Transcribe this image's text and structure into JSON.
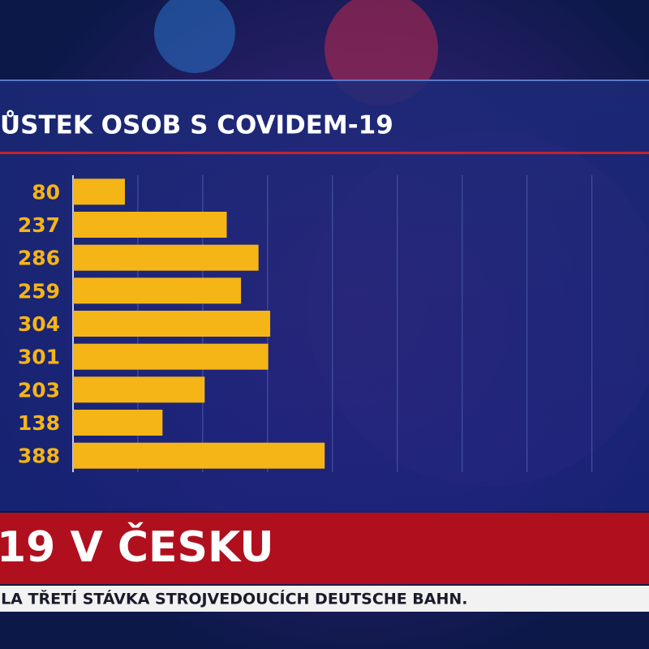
{
  "chart_data": {
    "type": "bar",
    "orientation": "horizontal",
    "title": "ŮSTEK OSOB S COVIDEM-19",
    "categories": [
      null,
      null,
      null,
      null,
      null,
      null,
      null,
      null,
      null
    ],
    "values": [
      80,
      237,
      286,
      259,
      304,
      301,
      203,
      138,
      388
    ],
    "color": "#f5b517",
    "xlim": [
      0,
      888
    ],
    "xticks": [
      100,
      200,
      300,
      400,
      500,
      600,
      700,
      800
    ],
    "grid": true
  },
  "banner": {
    "title": "19 V ČESKU"
  },
  "ticker": {
    "text": "ILA TŘETÍ STÁVKA STROJVEDOUCÍCH DEUTSCHE BAHN."
  }
}
